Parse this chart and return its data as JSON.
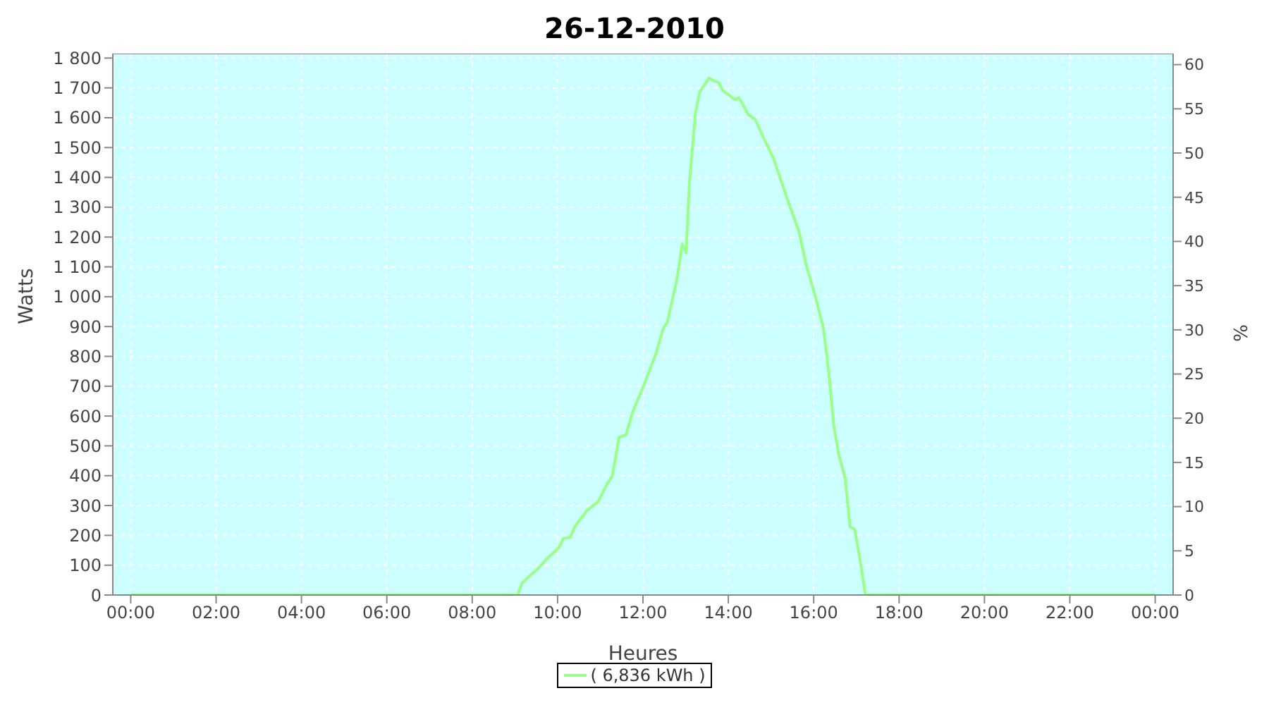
{
  "chart_data": {
    "type": "line",
    "title": "26-12-2010",
    "xlabel": "Heures",
    "ylabel": "Watts",
    "y2label": "%",
    "series": [
      {
        "name": "( 6,836 kWh )",
        "color": "#99ff88",
        "x": [
          0,
          9.0,
          9.06,
          9.17,
          9.33,
          9.55,
          9.76,
          10.03,
          10.14,
          10.3,
          10.41,
          10.68,
          10.95,
          11.17,
          11.28,
          11.44,
          11.6,
          11.76,
          12.03,
          12.3,
          12.47,
          12.57,
          12.79,
          12.92,
          13.01,
          13.09,
          13.23,
          13.33,
          13.55,
          13.6,
          13.77,
          13.87,
          14.15,
          14.25,
          14.47,
          14.63,
          14.85,
          15.06,
          15.39,
          15.66,
          15.82,
          16.04,
          16.23,
          16.36,
          16.47,
          16.58,
          16.74,
          16.85,
          16.96,
          17.1,
          17.21,
          24
        ],
        "values": [
          0,
          0,
          0,
          40,
          62,
          90,
          123,
          159,
          190,
          194,
          231,
          282,
          313,
          375,
          398,
          529,
          537,
          614,
          707,
          807,
          892,
          915,
          1054,
          1177,
          1147,
          1386,
          1617,
          1687,
          1733,
          1728,
          1718,
          1691,
          1661,
          1667,
          1610,
          1594,
          1525,
          1463,
          1324,
          1216,
          1108,
          1000,
          892,
          738,
          568,
          475,
          390,
          228,
          221,
          105,
          0,
          0
        ]
      }
    ],
    "xlim": [
      -0.42,
      24.42
    ],
    "xticks": [
      {
        "value": 0,
        "label": "00:00"
      },
      {
        "value": 2,
        "label": "02:00"
      },
      {
        "value": 4,
        "label": "04:00"
      },
      {
        "value": 6,
        "label": "06:00"
      },
      {
        "value": 8,
        "label": "08:00"
      },
      {
        "value": 10,
        "label": "10:00"
      },
      {
        "value": 12,
        "label": "12:00"
      },
      {
        "value": 14,
        "label": "14:00"
      },
      {
        "value": 16,
        "label": "16:00"
      },
      {
        "value": 18,
        "label": "18:00"
      },
      {
        "value": 20,
        "label": "20:00"
      },
      {
        "value": 22,
        "label": "22:00"
      },
      {
        "value": 24,
        "label": "00:00"
      }
    ],
    "ylim": [
      0,
      1815
    ],
    "yticks": [
      0,
      100,
      200,
      300,
      400,
      500,
      600,
      700,
      800,
      900,
      {
        "value": 1000,
        "label": "1 000"
      },
      {
        "value": 1100,
        "label": "1 100"
      },
      {
        "value": 1200,
        "label": "1 200"
      },
      {
        "value": 1300,
        "label": "1 300"
      },
      {
        "value": 1400,
        "label": "1 400"
      },
      {
        "value": 1500,
        "label": "1 500"
      },
      {
        "value": 1600,
        "label": "1 600"
      },
      {
        "value": 1700,
        "label": "1 700"
      },
      {
        "value": 1800,
        "label": "1 800"
      }
    ],
    "y2lim": [
      0,
      61.25
    ],
    "y2ticks": [
      0,
      5,
      10,
      15,
      20,
      25,
      30,
      35,
      40,
      45,
      50,
      55,
      60
    ],
    "grid": true,
    "legend": "bottom",
    "marker": "none",
    "line_style": "solid"
  }
}
